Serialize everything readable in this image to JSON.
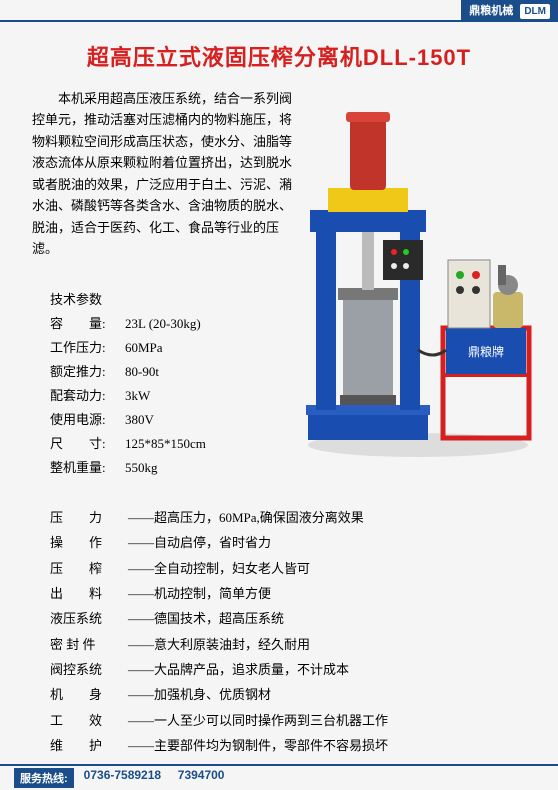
{
  "header": {
    "brand": "鼎粮机械",
    "brand_sub": "DLM"
  },
  "title": "超高压立式液固压榨分离机DLL-150T",
  "description": "本机采用超高压液压系统，结合一系列阀控单元，推动活塞对压滤桶内的物料施压，将物料颗粒空间形成高压状态，使水分、油脂等液态流体从原来颗粒附着位置挤出，达到脱水或者脱油的效果，广泛应用于白土、污泥、潲水油、磷酸钙等各类含水、含油物质的脱水、脱油，适合于医药、化工、食品等行业的压滤。",
  "specs": {
    "heading": "技术参数",
    "rows": [
      {
        "label": "容　　量:",
        "value": "23L (20-30kg)"
      },
      {
        "label": "工作压力:",
        "value": "60MPa"
      },
      {
        "label": "额定推力:",
        "value": "80-90t"
      },
      {
        "label": "配套动力:",
        "value": "3kW"
      },
      {
        "label": "使用电源:",
        "value": "380V"
      },
      {
        "label": "尺　　寸:",
        "value": "125*85*150cm"
      },
      {
        "label": "整机重量:",
        "value": "550kg"
      }
    ]
  },
  "features": [
    {
      "label": "压　　力",
      "value": "超高压力，60MPa,确保固液分离效果"
    },
    {
      "label": "操　　作",
      "value": "自动启停，省时省力"
    },
    {
      "label": "压　　榨",
      "value": "全自动控制，妇女老人皆可"
    },
    {
      "label": "出　　料",
      "value": "机动控制，简单方便"
    },
    {
      "label": "液压系统",
      "value": "德国技术，超高压系统"
    },
    {
      "label": "密 封 件",
      "value": "意大利原装油封，经久耐用"
    },
    {
      "label": "阀控系统",
      "value": "大品牌产品，追求质量，不计成本"
    },
    {
      "label": "机　　身",
      "value": "加强机身、优质钢材"
    },
    {
      "label": "工　　效",
      "value": "一人至少可以同时操作两到三台机器工作"
    },
    {
      "label": "维　　护",
      "value": "主要部件均为钢制件，零部件不容易损坏"
    }
  ],
  "footer": {
    "label": "服务热线:",
    "phone1": "0736-7589218",
    "phone2": "7394700"
  },
  "machine": {
    "press_body": "#1a4db0",
    "press_top": "#f0c818",
    "cylinder": "#c0342a",
    "hpu_panel": "#e8e4da",
    "hpu_box": "#1a4db0",
    "table_frame": "#d62020",
    "floor": "#eeeeee",
    "brand_text": "鼎粮牌"
  }
}
